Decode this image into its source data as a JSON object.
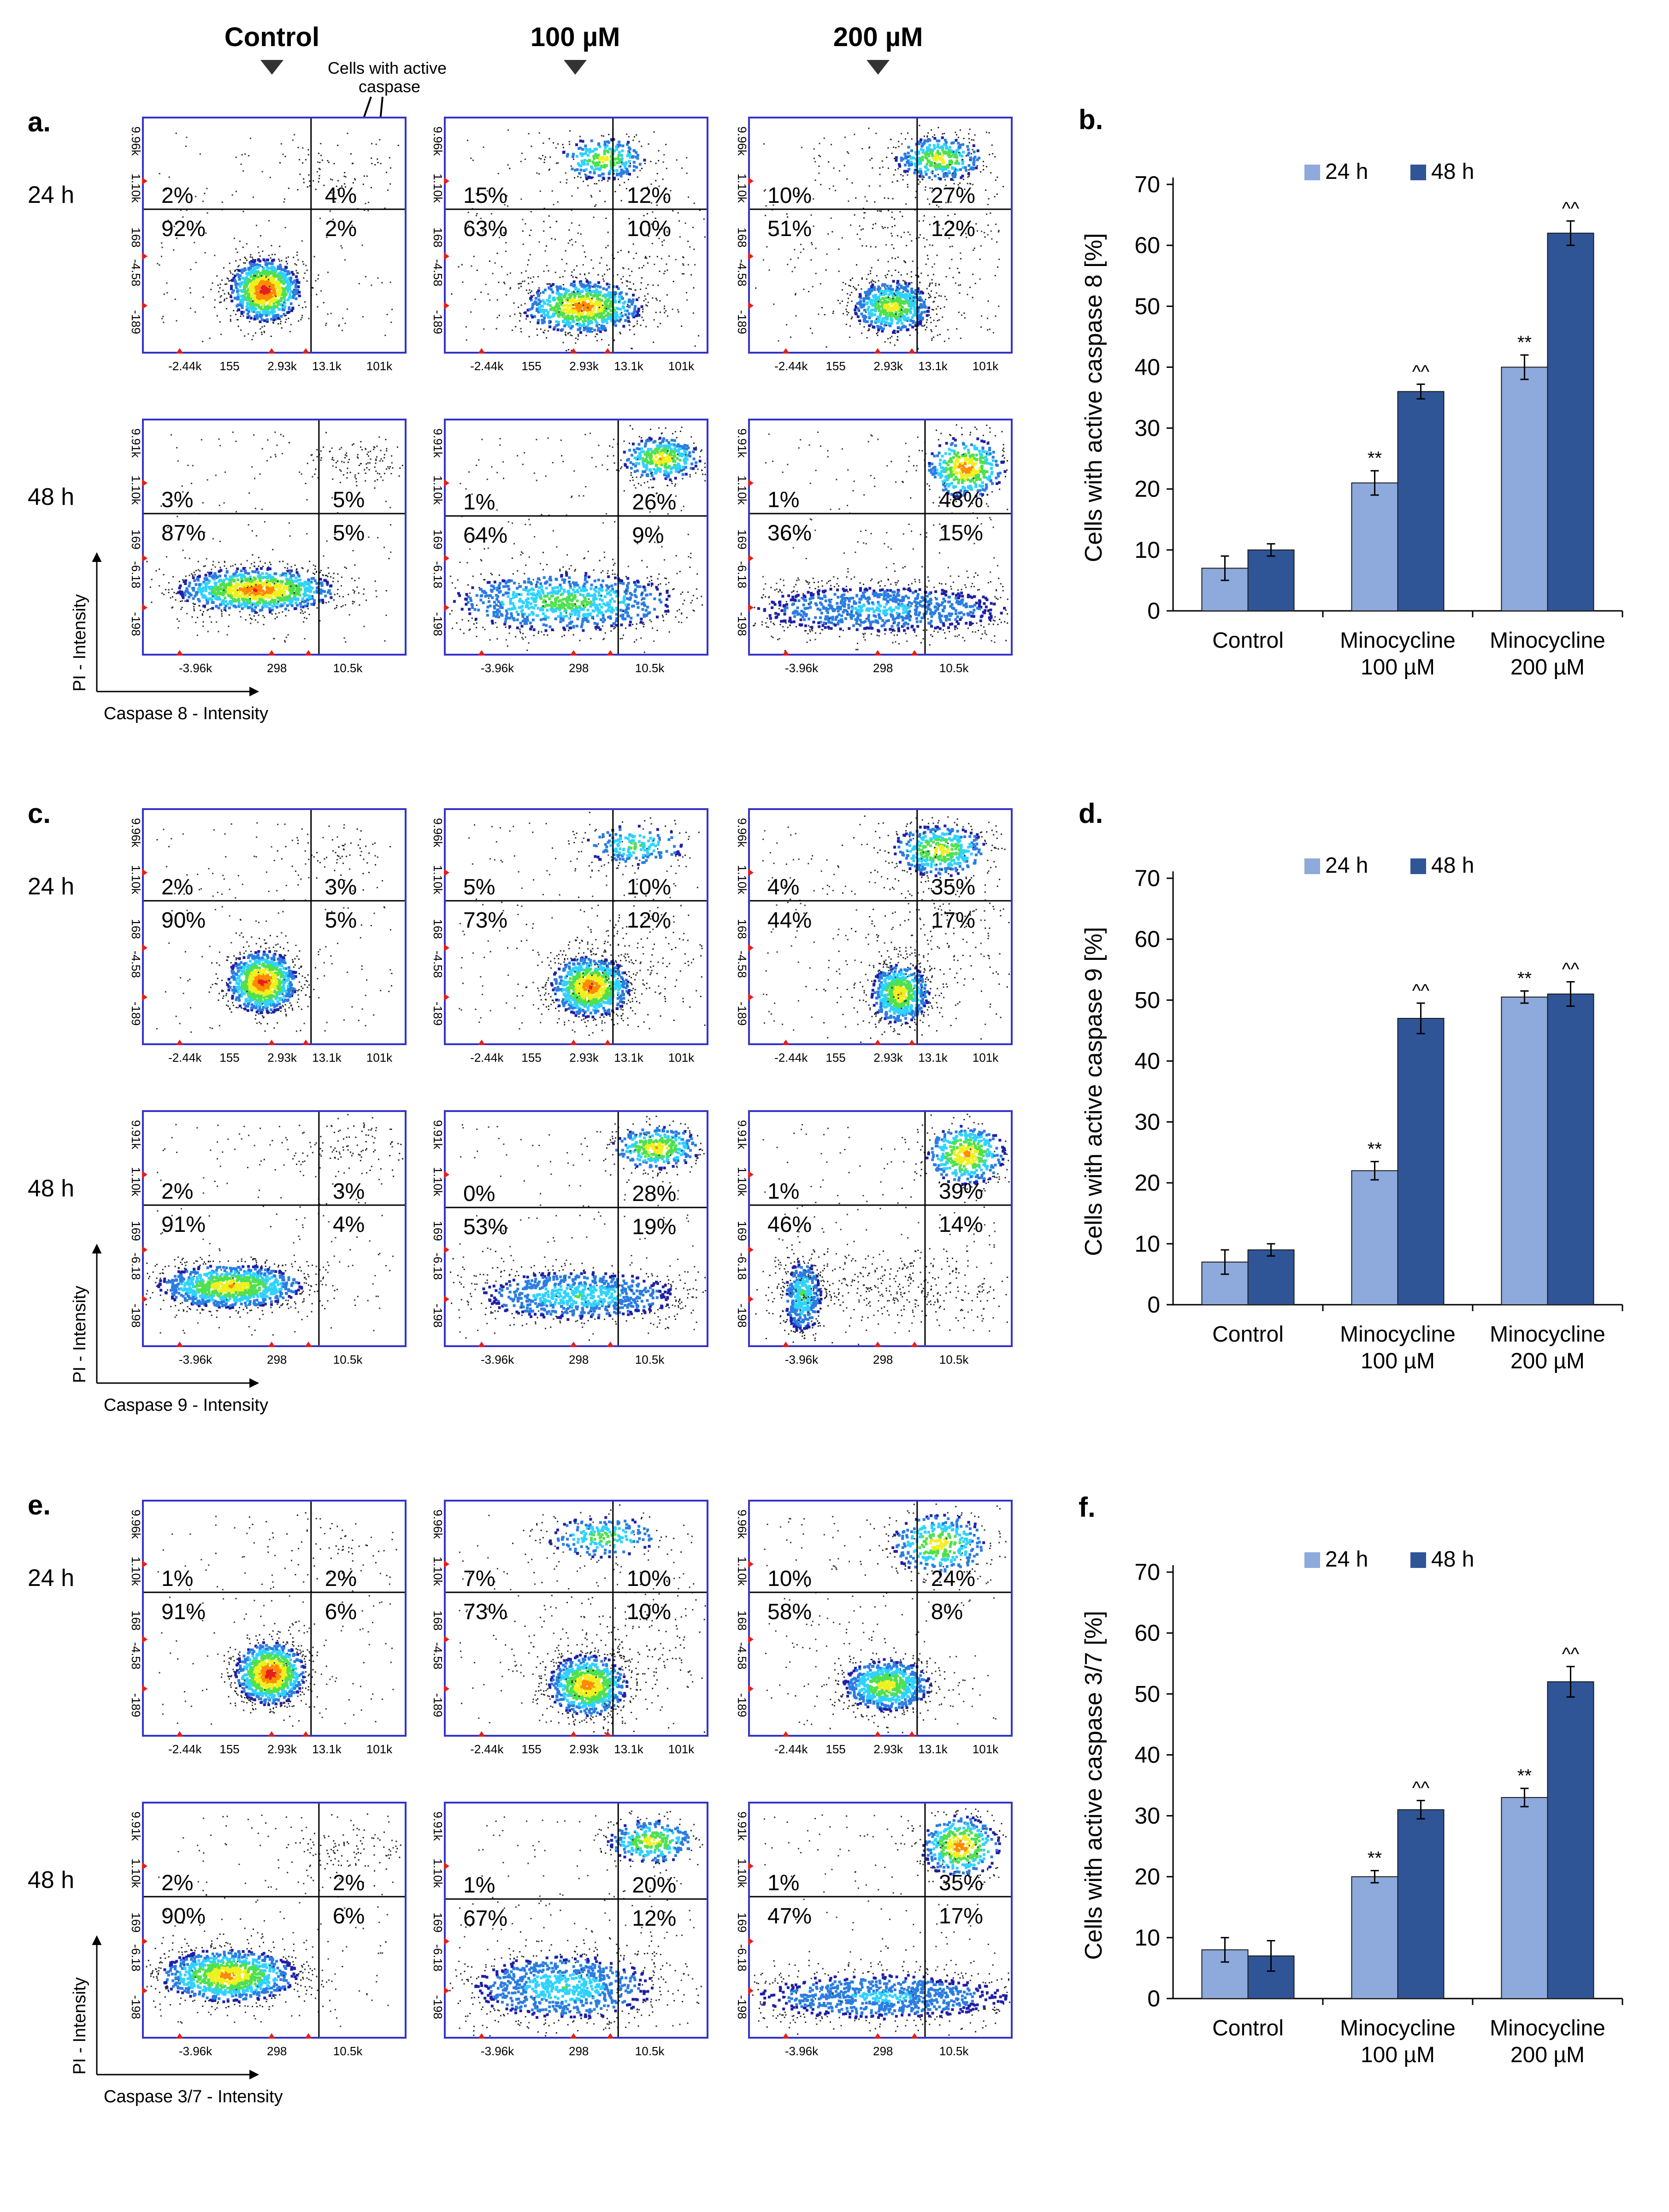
{
  "column_headers": [
    "Control",
    "100 µM",
    "200 µM"
  ],
  "annotation": "Cells with active\ncaspase",
  "timepoints": [
    "24 h",
    "48 h"
  ],
  "colors": {
    "plot_frame": "#3333cc",
    "bar_24h": "#8ea9db",
    "bar_48h": "#2f5597",
    "gate_line": "#000000",
    "density_ramp": [
      "#1f1fa8",
      "#2a7de1",
      "#2fd2ff",
      "#4fe04f",
      "#f0f01e",
      "#ff8a00",
      "#e61e1e"
    ]
  },
  "panels": [
    {
      "letter": "a.",
      "xlabel": "Caspase 8 - Intensity",
      "ylabel": "PI - Intensity",
      "rows": [
        {
          "time": "24 h",
          "xticks": [
            "-2.44k",
            "155",
            "2.93k",
            "13.1k",
            "101k"
          ],
          "yticks": [
            "9.96k",
            "1.10k",
            "168",
            "-4.58",
            "-189"
          ],
          "plots": [
            {
              "quadrants": [
                "2%",
                "4%",
                "92%",
                "2%"
              ],
              "populations": [
                {
                  "cx": 0.46,
                  "cy": 0.73,
                  "sx": 0.07,
                  "sy": 0.07,
                  "n": 1800,
                  "core": 1.0
                },
                {
                  "cx": 0.72,
                  "cy": 0.22,
                  "sx": 0.14,
                  "sy": 0.07,
                  "n": 120,
                  "core": 0.0
                }
              ]
            },
            {
              "quadrants": [
                "15%",
                "12%",
                "63%",
                "10%"
              ],
              "populations": [
                {
                  "cx": 0.52,
                  "cy": 0.8,
                  "sx": 0.12,
                  "sy": 0.06,
                  "n": 1500,
                  "core": 0.85
                },
                {
                  "cx": 0.6,
                  "cy": 0.17,
                  "sx": 0.09,
                  "sy": 0.05,
                  "n": 500,
                  "core": 0.65
                },
                {
                  "cx": 0.7,
                  "cy": 0.6,
                  "sx": 0.25,
                  "sy": 0.18,
                  "n": 400,
                  "core": 0.0
                }
              ]
            },
            {
              "quadrants": [
                "10%",
                "27%",
                "51%",
                "12%"
              ],
              "populations": [
                {
                  "cx": 0.54,
                  "cy": 0.8,
                  "sx": 0.08,
                  "sy": 0.06,
                  "n": 1200,
                  "core": 0.7
                },
                {
                  "cx": 0.72,
                  "cy": 0.17,
                  "sx": 0.09,
                  "sy": 0.05,
                  "n": 700,
                  "core": 0.7
                },
                {
                  "cx": 0.65,
                  "cy": 0.55,
                  "sx": 0.22,
                  "sy": 0.2,
                  "n": 450,
                  "core": 0.0
                }
              ]
            }
          ]
        },
        {
          "time": "48 h",
          "xticks": [
            "-3.96k",
            "298",
            "10.5k"
          ],
          "yticks": [
            "9.91k",
            "1.10k",
            "169",
            "-6.18",
            "-198"
          ],
          "plots": [
            {
              "quadrants": [
                "3%",
                "5%",
                "87%",
                "5%"
              ],
              "populations": [
                {
                  "cx": 0.43,
                  "cy": 0.72,
                  "sx": 0.16,
                  "sy": 0.05,
                  "n": 2000,
                  "core": 0.9
                },
                {
                  "cx": 0.82,
                  "cy": 0.18,
                  "sx": 0.1,
                  "sy": 0.05,
                  "n": 200,
                  "core": 0.0
                }
              ]
            },
            {
              "quadrants": [
                "1%",
                "26%",
                "64%",
                "9%"
              ],
              "populations": [
                {
                  "cx": 0.45,
                  "cy": 0.77,
                  "sx": 0.24,
                  "sy": 0.07,
                  "n": 1700,
                  "core": 0.55
                },
                {
                  "cx": 0.82,
                  "cy": 0.16,
                  "sx": 0.08,
                  "sy": 0.05,
                  "n": 700,
                  "core": 0.75
                }
              ]
            },
            {
              "quadrants": [
                "1%",
                "48%",
                "36%",
                "15%"
              ],
              "populations": [
                {
                  "cx": 0.5,
                  "cy": 0.8,
                  "sx": 0.3,
                  "sy": 0.06,
                  "n": 1800,
                  "core": 0.35
                },
                {
                  "cx": 0.82,
                  "cy": 0.2,
                  "sx": 0.08,
                  "sy": 0.07,
                  "n": 800,
                  "core": 0.85
                }
              ]
            }
          ]
        }
      ]
    },
    {
      "letter": "c.",
      "xlabel": "Caspase 9 - Intensity",
      "ylabel": "PI - Intensity",
      "rows": [
        {
          "time": "24 h",
          "xticks": [
            "-2.44k",
            "155",
            "2.93k",
            "13.1k",
            "101k"
          ],
          "yticks": [
            "9.96k",
            "1.10k",
            "168",
            "-4.58",
            "-189"
          ],
          "plots": [
            {
              "quadrants": [
                "2%",
                "3%",
                "90%",
                "5%"
              ],
              "populations": [
                {
                  "cx": 0.45,
                  "cy": 0.73,
                  "sx": 0.07,
                  "sy": 0.07,
                  "n": 1800,
                  "core": 0.95
                },
                {
                  "cx": 0.72,
                  "cy": 0.2,
                  "sx": 0.14,
                  "sy": 0.07,
                  "n": 120,
                  "core": 0.0
                }
              ]
            },
            {
              "quadrants": [
                "5%",
                "10%",
                "73%",
                "12%"
              ],
              "populations": [
                {
                  "cx": 0.55,
                  "cy": 0.75,
                  "sx": 0.08,
                  "sy": 0.07,
                  "n": 1700,
                  "core": 0.9
                },
                {
                  "cx": 0.72,
                  "cy": 0.15,
                  "sx": 0.11,
                  "sy": 0.05,
                  "n": 350,
                  "core": 0.5
                },
                {
                  "cx": 0.72,
                  "cy": 0.6,
                  "sx": 0.22,
                  "sy": 0.15,
                  "n": 350,
                  "core": 0.0
                }
              ]
            },
            {
              "quadrants": [
                "4%",
                "35%",
                "44%",
                "17%"
              ],
              "populations": [
                {
                  "cx": 0.57,
                  "cy": 0.78,
                  "sx": 0.06,
                  "sy": 0.07,
                  "n": 1200,
                  "core": 0.75
                },
                {
                  "cx": 0.72,
                  "cy": 0.17,
                  "sx": 0.1,
                  "sy": 0.06,
                  "n": 800,
                  "core": 0.7
                },
                {
                  "cx": 0.7,
                  "cy": 0.55,
                  "sx": 0.2,
                  "sy": 0.2,
                  "n": 450,
                  "core": 0.0
                }
              ]
            }
          ]
        },
        {
          "time": "48 h",
          "xticks": [
            "-3.96k",
            "298",
            "10.5k"
          ],
          "yticks": [
            "9.91k",
            "1.10k",
            "169",
            "-6.18",
            "-198"
          ],
          "plots": [
            {
              "quadrants": [
                "2%",
                "3%",
                "91%",
                "4%"
              ],
              "populations": [
                {
                  "cx": 0.33,
                  "cy": 0.74,
                  "sx": 0.15,
                  "sy": 0.05,
                  "n": 2000,
                  "core": 0.75
                },
                {
                  "cx": 0.75,
                  "cy": 0.16,
                  "sx": 0.13,
                  "sy": 0.06,
                  "n": 180,
                  "core": 0.0
                }
              ]
            },
            {
              "quadrants": [
                "0%",
                "28%",
                "53%",
                "19%"
              ],
              "populations": [
                {
                  "cx": 0.5,
                  "cy": 0.78,
                  "sx": 0.22,
                  "sy": 0.06,
                  "n": 1600,
                  "core": 0.45
                },
                {
                  "cx": 0.8,
                  "cy": 0.15,
                  "sx": 0.09,
                  "sy": 0.05,
                  "n": 700,
                  "core": 0.75
                }
              ]
            },
            {
              "quadrants": [
                "1%",
                "39%",
                "46%",
                "14%"
              ],
              "populations": [
                {
                  "cx": 0.2,
                  "cy": 0.78,
                  "sx": 0.04,
                  "sy": 0.09,
                  "n": 800,
                  "core": 0.5
                },
                {
                  "cx": 0.82,
                  "cy": 0.18,
                  "sx": 0.08,
                  "sy": 0.07,
                  "n": 800,
                  "core": 0.8
                },
                {
                  "cx": 0.55,
                  "cy": 0.75,
                  "sx": 0.25,
                  "sy": 0.08,
                  "n": 700,
                  "core": 0.0
                }
              ]
            }
          ]
        }
      ]
    },
    {
      "letter": "e.",
      "xlabel": "Caspase 3/7 - Intensity",
      "ylabel": "PI - Intensity",
      "rows": [
        {
          "time": "24 h",
          "xticks": [
            "-2.44k",
            "155",
            "2.93k",
            "13.1k",
            "101k"
          ],
          "yticks": [
            "9.96k",
            "1.10k",
            "168",
            "-4.58",
            "-189"
          ],
          "plots": [
            {
              "quadrants": [
                "1%",
                "2%",
                "91%",
                "6%"
              ],
              "populations": [
                {
                  "cx": 0.48,
                  "cy": 0.73,
                  "sx": 0.07,
                  "sy": 0.07,
                  "n": 1800,
                  "core": 1.0
                },
                {
                  "cx": 0.72,
                  "cy": 0.2,
                  "sx": 0.14,
                  "sy": 0.07,
                  "n": 100,
                  "core": 0.0
                }
              ]
            },
            {
              "quadrants": [
                "7%",
                "10%",
                "73%",
                "10%"
              ],
              "populations": [
                {
                  "cx": 0.54,
                  "cy": 0.78,
                  "sx": 0.08,
                  "sy": 0.07,
                  "n": 1600,
                  "core": 0.85
                },
                {
                  "cx": 0.6,
                  "cy": 0.15,
                  "sx": 0.12,
                  "sy": 0.05,
                  "n": 400,
                  "core": 0.55
                },
                {
                  "cx": 0.72,
                  "cy": 0.6,
                  "sx": 0.22,
                  "sy": 0.15,
                  "n": 350,
                  "core": 0.0
                }
              ]
            },
            {
              "quadrants": [
                "10%",
                "24%",
                "58%",
                "8%"
              ],
              "populations": [
                {
                  "cx": 0.52,
                  "cy": 0.78,
                  "sx": 0.09,
                  "sy": 0.06,
                  "n": 1400,
                  "core": 0.7
                },
                {
                  "cx": 0.72,
                  "cy": 0.18,
                  "sx": 0.1,
                  "sy": 0.07,
                  "n": 700,
                  "core": 0.7
                }
              ]
            }
          ]
        },
        {
          "time": "48 h",
          "xticks": [
            "-3.96k",
            "298",
            "10.5k"
          ],
          "yticks": [
            "9.91k",
            "1.10k",
            "169",
            "-6.18",
            "-198"
          ],
          "plots": [
            {
              "quadrants": [
                "2%",
                "2%",
                "90%",
                "6%"
              ],
              "populations": [
                {
                  "cx": 0.32,
                  "cy": 0.73,
                  "sx": 0.14,
                  "sy": 0.06,
                  "n": 2000,
                  "core": 0.8
                },
                {
                  "cx": 0.78,
                  "cy": 0.2,
                  "sx": 0.12,
                  "sy": 0.06,
                  "n": 200,
                  "core": 0.0
                }
              ]
            },
            {
              "quadrants": [
                "1%",
                "20%",
                "67%",
                "12%"
              ],
              "populations": [
                {
                  "cx": 0.45,
                  "cy": 0.78,
                  "sx": 0.2,
                  "sy": 0.08,
                  "n": 1700,
                  "core": 0.45
                },
                {
                  "cx": 0.78,
                  "cy": 0.16,
                  "sx": 0.09,
                  "sy": 0.05,
                  "n": 600,
                  "core": 0.7
                }
              ]
            },
            {
              "quadrants": [
                "1%",
                "35%",
                "47%",
                "17%"
              ],
              "populations": [
                {
                  "cx": 0.5,
                  "cy": 0.82,
                  "sx": 0.3,
                  "sy": 0.06,
                  "n": 1800,
                  "core": 0.35
                },
                {
                  "cx": 0.8,
                  "cy": 0.18,
                  "sx": 0.08,
                  "sy": 0.07,
                  "n": 800,
                  "core": 0.85
                }
              ]
            }
          ]
        }
      ]
    }
  ],
  "chart_data": [
    {
      "panel": "b.",
      "type": "bar",
      "categories": [
        [
          "Control"
        ],
        [
          "Minocycline",
          "100 µM"
        ],
        [
          "Minocycline",
          "200 µM"
        ]
      ],
      "series": [
        {
          "name": "24 h",
          "values": [
            7,
            21,
            40
          ],
          "errors": [
            2,
            2,
            2
          ],
          "marks": [
            "",
            "**",
            "**"
          ]
        },
        {
          "name": "48 h",
          "values": [
            10,
            36,
            62
          ],
          "errors": [
            1,
            1.2,
            2
          ],
          "marks": [
            "",
            "^^",
            "^^"
          ]
        }
      ],
      "ylabel": "Cells with active caspase 8 [%]",
      "ylim": [
        0,
        70
      ],
      "yticks": [
        0,
        10,
        20,
        30,
        40,
        50,
        60,
        70
      ]
    },
    {
      "panel": "d.",
      "type": "bar",
      "categories": [
        [
          "Control"
        ],
        [
          "Minocycline",
          "100 µM"
        ],
        [
          "Minocycline",
          "200 µM"
        ]
      ],
      "series": [
        {
          "name": "24 h",
          "values": [
            7,
            22,
            50.5
          ],
          "errors": [
            2,
            1.5,
            1
          ],
          "marks": [
            "",
            "**",
            "**"
          ]
        },
        {
          "name": "48 h",
          "values": [
            9,
            47,
            51
          ],
          "errors": [
            1,
            2.5,
            2
          ],
          "marks": [
            "",
            "^^",
            "^^"
          ]
        }
      ],
      "ylabel": "Cells with active caspase 9 [%]",
      "ylim": [
        0,
        70
      ],
      "yticks": [
        0,
        10,
        20,
        30,
        40,
        50,
        60,
        70
      ]
    },
    {
      "panel": "f.",
      "type": "bar",
      "categories": [
        [
          "Control"
        ],
        [
          "Minocycline",
          "100 µM"
        ],
        [
          "Minocycline",
          "200 µM"
        ]
      ],
      "series": [
        {
          "name": "24 h",
          "values": [
            8,
            20,
            33
          ],
          "errors": [
            2,
            1,
            1.5
          ],
          "marks": [
            "",
            "**",
            "**"
          ]
        },
        {
          "name": "48 h",
          "values": [
            7,
            31,
            52
          ],
          "errors": [
            2.5,
            1.5,
            2.5
          ],
          "marks": [
            "",
            "^^",
            "^^"
          ]
        }
      ],
      "ylabel": "Cells with active caspase 3/7 [%]",
      "ylim": [
        0,
        70
      ],
      "yticks": [
        0,
        10,
        20,
        30,
        40,
        50,
        60,
        70
      ]
    }
  ]
}
